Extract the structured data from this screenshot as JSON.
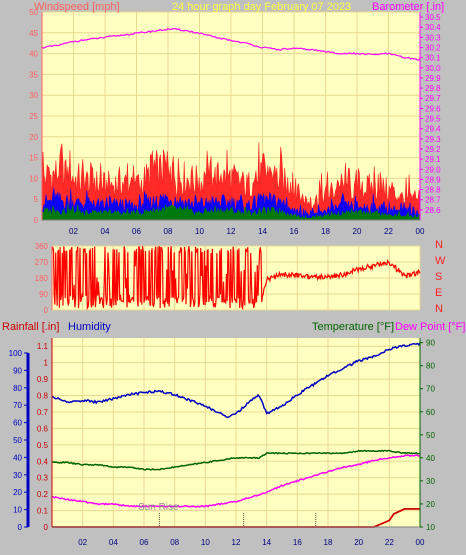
{
  "header": {
    "left_label": "Windspeed [mph]",
    "center_label": "24 hour graph day   February 07 2023",
    "right_label": "Barometer [.in]"
  },
  "direction_labels": [
    "N",
    "W",
    "S",
    "E",
    "N"
  ],
  "bottom_header": {
    "rainfall_label": "Rainfall [.in]",
    "humidity_label": "Humidity",
    "temperature_label": "Temperature [°F]",
    "dewpoint_label": "Dew Point [°F]"
  },
  "sunrise_label": "Sun Rise",
  "colors": {
    "plot_bg": "#ffffc0",
    "grid": "#e8d890",
    "panel_bg": "#c0c0c0",
    "windspeed_axis": "#ff6060",
    "barometer_axis": "#ff00ff",
    "title_yellow": "#ffff40",
    "humidity": "#0000c0",
    "temperature": "#006400",
    "dewpoint": "#ff00ff",
    "rainfall": "#cc0000",
    "wind_gust": "#ff2020",
    "wind_avg": "#0000ff",
    "wind_low": "#008000",
    "direction": "#ff0000"
  },
  "chart_data": [
    {
      "type": "area",
      "name": "wind-barometer",
      "x_ticks": [
        "02",
        "04",
        "06",
        "08",
        "10",
        "12",
        "14",
        "16",
        "18",
        "20",
        "22",
        "00"
      ],
      "x_domain_hours": [
        0,
        24
      ],
      "y_left_ticks": [
        0,
        5,
        10,
        15,
        20,
        25,
        30,
        35,
        40,
        45,
        50
      ],
      "y_left_range": [
        0,
        50
      ],
      "y_right_ticks": [
        28.6,
        28.7,
        28.8,
        28.9,
        29.0,
        29.1,
        29.2,
        29.3,
        29.4,
        29.5,
        29.6,
        29.7,
        29.8,
        29.9,
        30.0,
        30.1,
        30.2,
        30.3,
        30.4,
        30.5
      ],
      "y_right_range": [
        28.5,
        30.55
      ],
      "series": [
        {
          "name": "Barometer",
          "axis": "right",
          "x": [
            0,
            1,
            2,
            3,
            4,
            5,
            6,
            7,
            8,
            8.5,
            9,
            10,
            11,
            12,
            13,
            14,
            15,
            16,
            17,
            18,
            19,
            20,
            21,
            22,
            23,
            24
          ],
          "values": [
            30.2,
            30.22,
            30.26,
            30.28,
            30.3,
            30.32,
            30.34,
            30.36,
            30.38,
            30.38,
            30.37,
            30.34,
            30.3,
            30.27,
            30.24,
            30.2,
            30.18,
            30.19,
            30.18,
            30.16,
            30.14,
            30.14,
            30.13,
            30.14,
            30.1,
            30.08
          ]
        },
        {
          "name": "Gust",
          "axis": "left",
          "x": [
            0,
            1,
            2,
            3,
            4,
            5,
            6,
            7,
            8,
            9,
            10,
            11,
            12,
            13,
            14,
            15,
            16,
            17,
            18,
            19,
            20,
            21,
            22,
            23,
            24
          ],
          "values": [
            10,
            11,
            10,
            9,
            8,
            9,
            8,
            11,
            12,
            10,
            9,
            10,
            10,
            8,
            11,
            10,
            7,
            4,
            6,
            8,
            7,
            8,
            7,
            5,
            4
          ]
        },
        {
          "name": "Average",
          "axis": "left",
          "x": [
            0,
            1,
            2,
            3,
            4,
            5,
            6,
            7,
            8,
            9,
            10,
            11,
            12,
            13,
            14,
            15,
            16,
            17,
            18,
            19,
            20,
            21,
            22,
            23,
            24
          ],
          "values": [
            4,
            4.5,
            4,
            3.5,
            3,
            3.5,
            3,
            4,
            5,
            4,
            3.5,
            4,
            4,
            3,
            4.5,
            4,
            2,
            1,
            2,
            3,
            3,
            3,
            2.5,
            2,
            1.5
          ]
        },
        {
          "name": "Low",
          "axis": "left",
          "x": [
            0,
            1,
            2,
            3,
            4,
            5,
            6,
            7,
            8,
            9,
            10,
            11,
            12,
            13,
            14,
            15,
            16,
            17,
            18,
            19,
            20,
            21,
            22,
            23,
            24
          ],
          "values": [
            2,
            2,
            2,
            1.5,
            1.5,
            1.5,
            1.5,
            2,
            2.5,
            2,
            1.5,
            2,
            2,
            1.5,
            2,
            2,
            1,
            0.5,
            1,
            1.5,
            1.5,
            1.5,
            1,
            1,
            0.5
          ]
        }
      ]
    },
    {
      "type": "line",
      "name": "wind-direction",
      "y_ticks": [
        0,
        90,
        180,
        270,
        360
      ],
      "y_range": [
        0,
        360
      ],
      "x_domain_hours": [
        0,
        24
      ],
      "series": [
        {
          "name": "Direction",
          "x": [
            0,
            1,
            2,
            3,
            4,
            5,
            6,
            7,
            8,
            9,
            10,
            11,
            12,
            13,
            13.6,
            14,
            15,
            16,
            17,
            18,
            19,
            20,
            21,
            22,
            23,
            24
          ],
          "values": [
            30,
            40,
            20,
            30,
            40,
            30,
            40,
            20,
            30,
            40,
            60,
            90,
            30,
            40,
            30,
            170,
            200,
            195,
            185,
            190,
            200,
            230,
            250,
            270,
            190,
            210
          ]
        }
      ]
    },
    {
      "type": "line",
      "name": "humidity-temperature",
      "x_ticks": [
        "02",
        "04",
        "06",
        "08",
        "10",
        "12",
        "14",
        "16",
        "18",
        "20",
        "22",
        "00"
      ],
      "x_domain_hours": [
        0,
        24
      ],
      "y_left_rain_ticks": [
        0,
        0.1,
        0.2,
        0.3,
        0.4,
        0.5,
        0.6,
        0.7,
        0.8,
        0.9,
        1,
        1.1
      ],
      "y_left_rain_range": [
        0,
        1.15
      ],
      "y_left_humidity_ticks": [
        0,
        10,
        20,
        30,
        40,
        50,
        60,
        70,
        80,
        90,
        100
      ],
      "y_left_humidity_range": [
        0,
        100
      ],
      "y_right_ticks": [
        10,
        20,
        30,
        40,
        50,
        60,
        70,
        80,
        90
      ],
      "y_right_range": [
        10,
        92
      ],
      "series": [
        {
          "name": "Humidity",
          "axis": "humidity",
          "x": [
            0,
            1,
            2,
            3,
            4,
            5,
            6,
            7,
            8,
            9,
            10,
            11,
            11.5,
            12,
            13,
            13.5,
            14,
            15,
            16,
            17,
            18,
            19,
            20,
            21,
            22,
            23,
            24
          ],
          "values": [
            69,
            66,
            67,
            66,
            68,
            70,
            71,
            72,
            70,
            67,
            64,
            60,
            58,
            60,
            67,
            70,
            60,
            64,
            70,
            75,
            80,
            84,
            88,
            90,
            94,
            96,
            97
          ]
        },
        {
          "name": "Temperature",
          "axis": "right",
          "x": [
            0,
            1,
            2,
            3,
            4,
            5,
            6,
            7,
            8,
            9,
            10,
            11,
            12,
            13,
            13.5,
            14,
            15,
            16,
            17,
            18,
            19,
            20,
            21,
            22,
            23,
            24
          ],
          "values": [
            38,
            38,
            37,
            37,
            36,
            36,
            35,
            35,
            36,
            37,
            38,
            39,
            40,
            40,
            40,
            42,
            42,
            42,
            42,
            42,
            42,
            43,
            43,
            43,
            42,
            42
          ]
        },
        {
          "name": "Dew Point",
          "axis": "right",
          "x": [
            0,
            1,
            2,
            3,
            4,
            5,
            6,
            7,
            8,
            9,
            10,
            11,
            12,
            13,
            14,
            15,
            16,
            17,
            18,
            19,
            20,
            21,
            22,
            23,
            24
          ],
          "values": [
            23,
            22,
            21,
            20,
            20,
            19,
            19,
            19,
            19,
            19,
            19,
            20,
            21,
            23,
            25,
            28,
            30,
            32,
            34,
            36,
            37,
            39,
            40,
            41,
            41
          ]
        },
        {
          "name": "Rainfall",
          "axis": "rain",
          "x": [
            0,
            21,
            21.5,
            22,
            22.3,
            23,
            23.8,
            24
          ],
          "values": [
            0,
            0,
            0.02,
            0.04,
            0.08,
            0.11,
            0.11,
            0.11
          ]
        }
      ],
      "markers": [
        7,
        12.5,
        17.2
      ]
    }
  ]
}
